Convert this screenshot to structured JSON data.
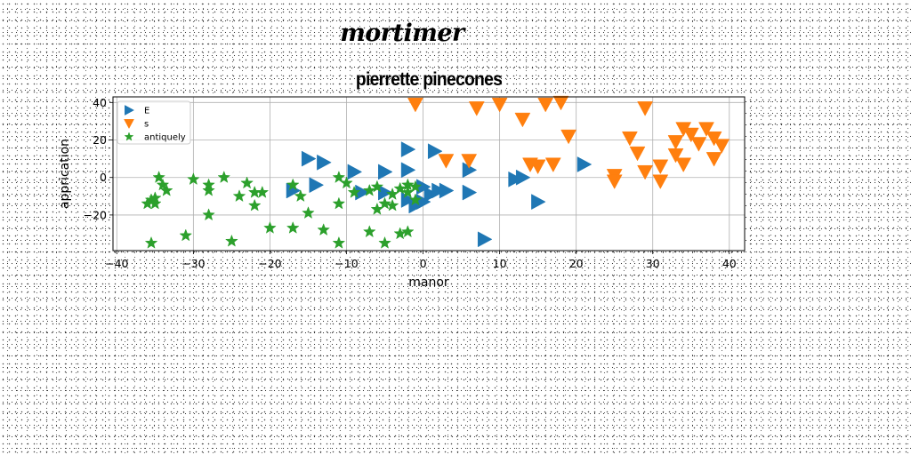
{
  "header": {
    "title": "mortimer"
  },
  "chart_data": {
    "type": "scatter",
    "title": "pierrette pinecones",
    "xlabel": "manor",
    "ylabel": "apprication",
    "xlim": [
      -40.5,
      42
    ],
    "ylim": [
      -39,
      43
    ],
    "xticks": [
      -40,
      -30,
      -20,
      -10,
      0,
      10,
      20,
      30,
      40
    ],
    "yticks": [
      -20,
      0,
      20,
      40
    ],
    "grid": true,
    "legend": {
      "position": "top-left"
    },
    "series": [
      {
        "name": "E",
        "marker": "triangle-right",
        "color": "#1f77b4",
        "points": [
          [
            -15,
            10
          ],
          [
            -13,
            8
          ],
          [
            -9,
            3
          ],
          [
            -5,
            3
          ],
          [
            -2,
            4
          ],
          [
            -2,
            15
          ],
          [
            1.5,
            14
          ],
          [
            -14,
            -4
          ],
          [
            -17,
            -7
          ],
          [
            -8,
            -8
          ],
          [
            -5,
            -8
          ],
          [
            -2,
            -12
          ],
          [
            -1,
            -15
          ],
          [
            0,
            -13
          ],
          [
            1,
            -9
          ],
          [
            2,
            -7
          ],
          [
            0,
            -5
          ],
          [
            3,
            -7
          ],
          [
            6,
            4
          ],
          [
            6,
            -8
          ],
          [
            12,
            -1
          ],
          [
            13,
            0
          ],
          [
            21,
            7
          ],
          [
            15,
            -13
          ],
          [
            8,
            -33
          ]
        ]
      },
      {
        "name": "s",
        "marker": "triangle-down",
        "color": "#ff7f0e",
        "points": [
          [
            -1,
            39
          ],
          [
            7,
            37
          ],
          [
            10,
            39
          ],
          [
            13,
            31
          ],
          [
            16,
            39
          ],
          [
            18,
            40
          ],
          [
            19,
            22
          ],
          [
            3,
            9
          ],
          [
            6,
            9
          ],
          [
            14,
            7
          ],
          [
            15,
            6
          ],
          [
            17,
            7
          ],
          [
            25,
            1
          ],
          [
            25,
            -2
          ],
          [
            27,
            21
          ],
          [
            28,
            13
          ],
          [
            29,
            37
          ],
          [
            29,
            3
          ],
          [
            31,
            6
          ],
          [
            31,
            -2
          ],
          [
            33,
            19
          ],
          [
            33,
            12
          ],
          [
            34,
            26
          ],
          [
            34,
            7
          ],
          [
            35,
            23
          ],
          [
            36,
            18
          ],
          [
            37,
            26
          ],
          [
            38,
            21
          ],
          [
            38,
            10
          ],
          [
            39,
            17
          ]
        ]
      },
      {
        "name": "antiquely",
        "marker": "star",
        "color": "#2ca02c",
        "points": [
          [
            -36,
            -14
          ],
          [
            -35.5,
            -12
          ],
          [
            -35,
            -14
          ],
          [
            -35,
            -11
          ],
          [
            -34.5,
            0
          ],
          [
            -34,
            -4
          ],
          [
            -33.5,
            -7
          ],
          [
            -35.5,
            -35
          ],
          [
            -31,
            -31
          ],
          [
            -30,
            -1
          ],
          [
            -28,
            -4
          ],
          [
            -28,
            -7
          ],
          [
            -28,
            -20
          ],
          [
            -26,
            0
          ],
          [
            -25,
            -34
          ],
          [
            -24,
            -10
          ],
          [
            -23,
            -3
          ],
          [
            -22,
            -8
          ],
          [
            -22,
            -15
          ],
          [
            -21,
            -8
          ],
          [
            -20,
            -27
          ],
          [
            -17,
            -4
          ],
          [
            -17,
            -27
          ],
          [
            -16,
            -10
          ],
          [
            -15,
            -19
          ],
          [
            -13,
            -28
          ],
          [
            -11,
            -35
          ],
          [
            -11,
            0
          ],
          [
            -11,
            -14
          ],
          [
            -10,
            -3
          ],
          [
            -9,
            -8
          ],
          [
            -7,
            -29
          ],
          [
            -7,
            -7
          ],
          [
            -6,
            -5
          ],
          [
            -6,
            -17
          ],
          [
            -5,
            -14
          ],
          [
            -5,
            -35
          ],
          [
            -4,
            -15
          ],
          [
            -4,
            -9
          ],
          [
            -3,
            -6
          ],
          [
            -2,
            -4
          ],
          [
            -2,
            -8
          ],
          [
            -2,
            -29
          ],
          [
            -3,
            -30
          ],
          [
            -1,
            -5
          ],
          [
            -1,
            -12
          ]
        ]
      }
    ]
  }
}
